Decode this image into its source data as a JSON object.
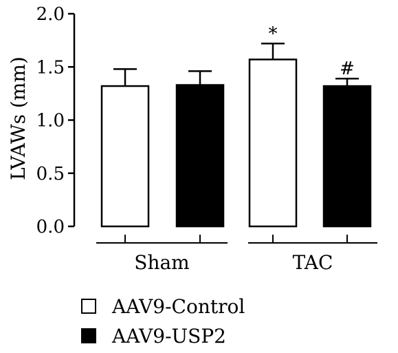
{
  "chart_data": {
    "type": "bar",
    "ylabel": "LVAWs (mm)",
    "ylim": [
      0,
      2.0
    ],
    "yticks": [
      "0.0",
      "0.5",
      "1.0",
      "1.5",
      "2.0"
    ],
    "groups": [
      "Sham",
      "TAC"
    ],
    "series": [
      {
        "name": "AAV9-Control",
        "color": "#ffffff",
        "values": [
          1.32,
          1.57
        ],
        "errors": [
          0.16,
          0.15
        ]
      },
      {
        "name": "AAV9-USP2",
        "color": "#000000",
        "values": [
          1.33,
          1.32
        ],
        "errors": [
          0.13,
          0.07
        ]
      }
    ],
    "annotations": [
      {
        "group": 1,
        "series": 0,
        "text": "*"
      },
      {
        "group": 1,
        "series": 1,
        "text": "#"
      }
    ],
    "legend_position": "bottom-left"
  }
}
